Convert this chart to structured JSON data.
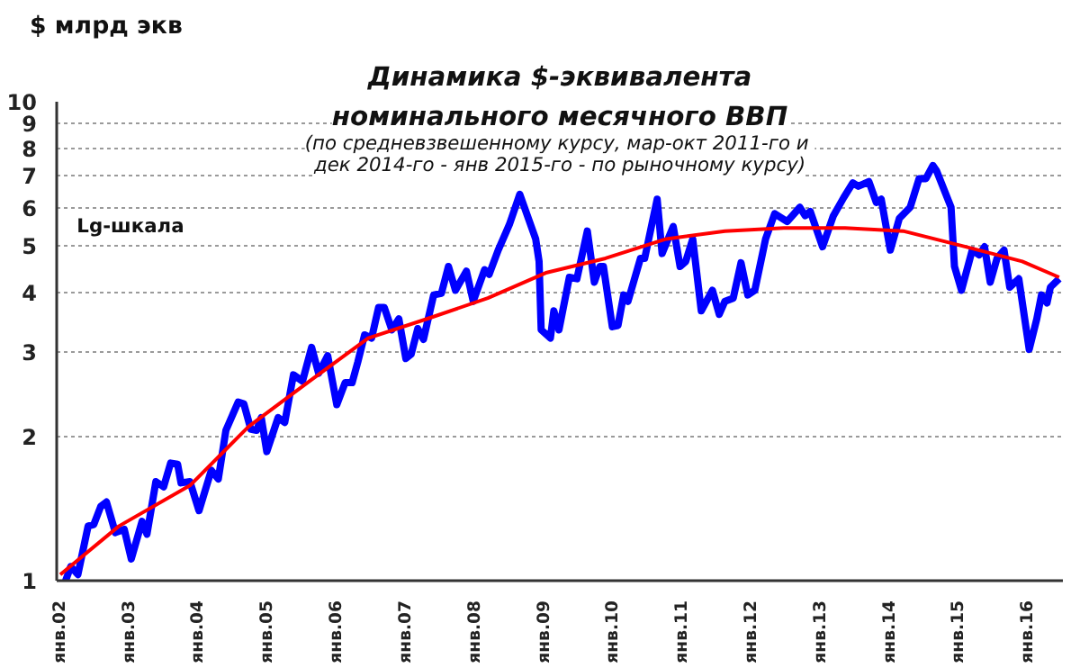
{
  "chart_data": {
    "type": "line",
    "title": "Динамика $-эквивалента\nноминального месячного ВВП",
    "subtitle": "(по средневзвешенному  курсу, мар-окт 2011-го и\nдек 2014-го - янв 2015-го - по рыночному курсу)",
    "ylabel": "$ млрд экв",
    "annotations": [
      "Lg-шкала"
    ],
    "log": "y",
    "grid": "y",
    "line_style": "solid",
    "xlim": [
      "2001-12-13",
      "2016-07-04"
    ],
    "ylim": [
      1,
      10
    ],
    "xticks": [
      {
        "value": "2002-01-01",
        "label": "янв.02"
      },
      {
        "value": "2003-01-01",
        "label": "янв.03"
      },
      {
        "value": "2004-01-01",
        "label": "янв.04"
      },
      {
        "value": "2005-01-01",
        "label": "янв.05"
      },
      {
        "value": "2006-01-01",
        "label": "янв.06"
      },
      {
        "value": "2007-01-01",
        "label": "янв.07"
      },
      {
        "value": "2008-01-01",
        "label": "янв.08"
      },
      {
        "value": "2009-01-01",
        "label": "янв.09"
      },
      {
        "value": "2010-01-01",
        "label": "янв.10"
      },
      {
        "value": "2011-01-01",
        "label": "янв.11"
      },
      {
        "value": "2012-01-01",
        "label": "янв.12"
      },
      {
        "value": "2013-01-01",
        "label": "янв.13"
      },
      {
        "value": "2014-01-01",
        "label": "янв.14"
      },
      {
        "value": "2015-01-01",
        "label": "янв.15"
      },
      {
        "value": "2016-01-01",
        "label": "янв.16"
      }
    ],
    "yticks": [
      1,
      2,
      3,
      4,
      5,
      6,
      7,
      8,
      9,
      10
    ],
    "series": [
      {
        "color": "#0000ff",
        "x": [
          "2002-01-29",
          "2002-02-25",
          "2002-04-04",
          "2002-05-28",
          "2002-06-27",
          "2002-08-03",
          "2002-09-02",
          "2002-10-19",
          "2002-12-05",
          "2003-01-11",
          "2003-03-09",
          "2003-04-04",
          "2003-05-21",
          "2003-07-01",
          "2003-08-07",
          "2003-09-13",
          "2003-10-01",
          "2003-11-17",
          "2004-01-04",
          "2004-03-09",
          "2004-04-15",
          "2004-05-25",
          "2004-07-29",
          "2004-08-28",
          "2004-10-04",
          "2004-11-03",
          "2004-11-28",
          "2004-12-27",
          "2005-02-25",
          "2005-04-01",
          "2005-05-17",
          "2005-07-04",
          "2005-08-21",
          "2005-09-27",
          "2005-11-14",
          "2006-01-01",
          "2006-02-14",
          "2006-03-23",
          "2006-04-22",
          "2006-05-28",
          "2006-07-04",
          "2006-08-10",
          "2006-09-09",
          "2006-10-19",
          "2006-11-25",
          "2007-01-01",
          "2007-01-29",
          "2007-03-05",
          "2007-04-04",
          "2007-05-28",
          "2007-07-08",
          "2007-08-14",
          "2007-09-20",
          "2007-11-17",
          "2007-12-23",
          "2008-02-21",
          "2008-03-16",
          "2008-05-03",
          "2008-07-01",
          "2008-08-25",
          "2008-11-17",
          "2008-12-05",
          "2008-12-16",
          "2009-02-03",
          "2009-02-21",
          "2009-03-20",
          "2009-05-14",
          "2009-06-23",
          "2009-08-17",
          "2009-09-23",
          "2009-10-22",
          "2009-11-10",
          "2009-12-27",
          "2010-01-26",
          "2010-02-25",
          "2010-03-20",
          "2010-05-25",
          "2010-06-16",
          "2010-08-21",
          "2010-09-16",
          "2010-11-14",
          "2010-12-20",
          "2011-01-19",
          "2011-02-25",
          "2011-04-11",
          "2011-06-09",
          "2011-07-15",
          "2011-08-14",
          "2011-09-27",
          "2011-11-07",
          "2011-12-13",
          "2012-01-19",
          "2012-03-16",
          "2012-05-03",
          "2012-07-08",
          "2012-09-13",
          "2012-10-11",
          "2012-11-07",
          "2013-01-11",
          "2013-03-09",
          "2013-05-03",
          "2013-06-20",
          "2013-07-19",
          "2013-09-13",
          "2013-10-22",
          "2013-11-17",
          "2014-01-04",
          "2014-02-21",
          "2014-04-19",
          "2014-06-05",
          "2014-07-11",
          "2014-08-17",
          "2014-09-05",
          "2014-11-21",
          "2014-12-09",
          "2015-01-15",
          "2015-03-13",
          "2015-04-19",
          "2015-05-17",
          "2015-06-16",
          "2015-07-22",
          "2015-08-28",
          "2015-09-27",
          "2015-11-14",
          "2016-01-08",
          "2016-02-17",
          "2016-03-13",
          "2016-04-11",
          "2016-04-29",
          "2016-06-14"
        ],
        "values": [
          1.0,
          1.07,
          1.03,
          1.3,
          1.31,
          1.43,
          1.46,
          1.26,
          1.28,
          1.11,
          1.33,
          1.25,
          1.61,
          1.57,
          1.76,
          1.75,
          1.6,
          1.61,
          1.4,
          1.7,
          1.63,
          2.06,
          2.36,
          2.34,
          2.07,
          2.06,
          2.19,
          1.86,
          2.19,
          2.14,
          2.69,
          2.61,
          3.07,
          2.71,
          2.95,
          2.33,
          2.59,
          2.59,
          2.86,
          3.26,
          3.21,
          3.72,
          3.72,
          3.34,
          3.52,
          2.91,
          2.97,
          3.36,
          3.19,
          3.95,
          3.98,
          4.53,
          4.04,
          4.43,
          3.83,
          4.46,
          4.36,
          4.9,
          5.54,
          6.41,
          5.17,
          4.64,
          3.34,
          3.21,
          3.66,
          3.34,
          4.3,
          4.27,
          5.37,
          4.2,
          4.53,
          4.53,
          3.39,
          3.41,
          3.95,
          3.83,
          4.71,
          4.71,
          6.26,
          4.82,
          5.49,
          4.53,
          4.64,
          5.17,
          3.66,
          4.04,
          3.6,
          3.83,
          3.89,
          4.61,
          3.95,
          4.04,
          5.17,
          5.84,
          5.62,
          6.02,
          5.78,
          5.9,
          4.98,
          5.78,
          6.31,
          6.77,
          6.66,
          6.81,
          6.16,
          6.26,
          4.9,
          5.71,
          6.02,
          6.91,
          6.91,
          7.36,
          7.18,
          6.02,
          4.53,
          4.04,
          4.9,
          4.79,
          4.98,
          4.2,
          4.71,
          4.9,
          4.1,
          4.27,
          3.04,
          3.52,
          3.95,
          3.8,
          4.1,
          4.27
        ]
      },
      {
        "color": "#ff0000",
        "x": [
          "2002-01-01",
          "2002-11-07",
          "2003-11-17",
          "2004-09-23",
          "2005-08-10",
          "2006-06-16",
          "2007-04-22",
          "2008-03-09",
          "2009-01-15",
          "2009-11-21",
          "2010-10-08",
          "2011-08-14",
          "2012-06-20",
          "2013-05-10",
          "2014-03-13",
          "2015-01-19",
          "2015-12-02",
          "2016-06-14"
        ],
        "values": [
          1.03,
          1.3,
          1.58,
          2.1,
          2.61,
          3.21,
          3.52,
          3.89,
          4.4,
          4.71,
          5.17,
          5.37,
          5.45,
          5.45,
          5.37,
          5.0,
          4.64,
          4.3
        ]
      }
    ]
  }
}
